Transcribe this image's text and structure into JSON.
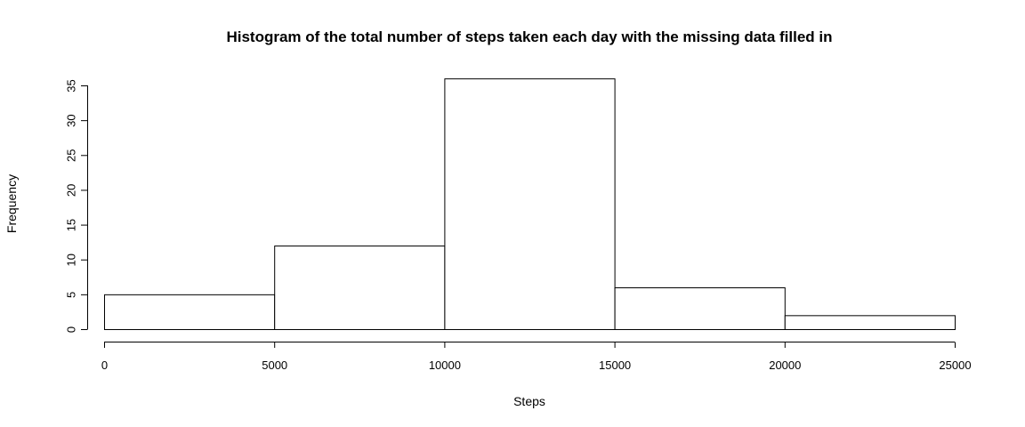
{
  "chart_data": {
    "type": "bar",
    "title": "Histogram of the total number of steps taken each day with the missing  data filled in",
    "xlabel": "Steps",
    "ylabel": "Frequency",
    "bins": [
      {
        "x0": 0,
        "x1": 5000,
        "value": 5
      },
      {
        "x0": 5000,
        "x1": 10000,
        "value": 12
      },
      {
        "x0": 10000,
        "x1": 15000,
        "value": 36
      },
      {
        "x0": 15000,
        "x1": 20000,
        "value": 6
      },
      {
        "x0": 20000,
        "x1": 25000,
        "value": 2
      }
    ],
    "xlim": [
      0,
      25000
    ],
    "ylim": [
      0,
      35
    ],
    "xticks": [
      0,
      5000,
      10000,
      15000,
      20000,
      25000
    ],
    "yticks": [
      0,
      5,
      10,
      15,
      20,
      25,
      30,
      35
    ],
    "grid": false,
    "bar_fill": "#ffffff",
    "bar_stroke": "#000000"
  }
}
